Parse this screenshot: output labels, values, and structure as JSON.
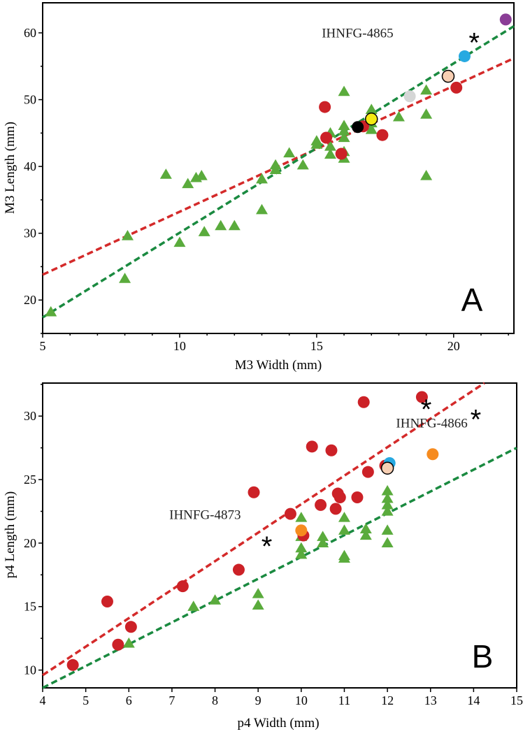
{
  "chart_data": [
    {
      "type": "scatter",
      "panel": "A",
      "title": "",
      "xlabel": "M3 Width (mm)",
      "ylabel": "M3 Length (mm)",
      "xlim": [
        5,
        22.2
      ],
      "ylim": [
        15,
        64.5
      ],
      "xticks": [
        5,
        10,
        15,
        20
      ],
      "yticks": [
        20,
        30,
        40,
        50,
        60
      ],
      "grid": false,
      "series": [
        {
          "name": "green-triangles",
          "marker": "triangle",
          "color": "#5aab3c",
          "points": [
            [
              5.3,
              18.2
            ],
            [
              8.0,
              23.2
            ],
            [
              8.1,
              29.6
            ],
            [
              9.5,
              38.8
            ],
            [
              10.0,
              28.6
            ],
            [
              10.3,
              37.4
            ],
            [
              10.6,
              38.3
            ],
            [
              10.8,
              38.6
            ],
            [
              10.9,
              30.2
            ],
            [
              11.5,
              31.1
            ],
            [
              12.0,
              31.1
            ],
            [
              13.0,
              33.5
            ],
            [
              13.0,
              38.1
            ],
            [
              13.5,
              39.5
            ],
            [
              13.5,
              40.2
            ],
            [
              14.0,
              42.0
            ],
            [
              14.5,
              40.2
            ],
            [
              15.0,
              43.3
            ],
            [
              15.0,
              43.8
            ],
            [
              15.5,
              41.8
            ],
            [
              15.5,
              43.0
            ],
            [
              15.5,
              45.0
            ],
            [
              16.0,
              41.2
            ],
            [
              16.0,
              42.2
            ],
            [
              16.0,
              44.3
            ],
            [
              16.0,
              45.3
            ],
            [
              16.0,
              46.1
            ],
            [
              16.0,
              51.2
            ],
            [
              17.0,
              45.5
            ],
            [
              17.0,
              46.5
            ],
            [
              17.0,
              48.5
            ],
            [
              18.0,
              47.4
            ],
            [
              19.0,
              38.6
            ],
            [
              19.0,
              47.8
            ],
            [
              19.0,
              51.4
            ]
          ]
        },
        {
          "name": "red-circles",
          "marker": "circle",
          "color": "#cc2127",
          "points": [
            [
              15.3,
              48.9
            ],
            [
              15.35,
              44.3
            ],
            [
              15.9,
              41.9
            ],
            [
              16.7,
              46.0
            ],
            [
              17.4,
              44.7
            ],
            [
              20.1,
              51.8
            ]
          ]
        },
        {
          "name": "black-circle",
          "marker": "circle",
          "color": "#000000",
          "points": [
            [
              16.5,
              45.9
            ]
          ]
        },
        {
          "name": "yellow-circle",
          "marker": "circle",
          "color": "#f5ea14",
          "outline": "#000000",
          "points": [
            [
              17.0,
              47.1
            ]
          ]
        },
        {
          "name": "gray-circle",
          "marker": "circle",
          "color": "#d5d6d6",
          "points": [
            [
              18.4,
              50.5
            ]
          ]
        },
        {
          "name": "peach-circle",
          "marker": "circle",
          "color": "#f8cfb3",
          "outline": "#000000",
          "points": [
            [
              19.8,
              53.5
            ]
          ]
        },
        {
          "name": "blue-circle",
          "marker": "circle",
          "color": "#27a9e1",
          "points": [
            [
              20.4,
              56.5
            ]
          ]
        },
        {
          "name": "purple-circle",
          "marker": "circle",
          "color": "#8a3d96",
          "points": [
            [
              21.9,
              62.0
            ]
          ]
        }
      ],
      "trendlines": [
        {
          "name": "red-trend",
          "color": "#d42a2a",
          "from": [
            5,
            23.8
          ],
          "to": [
            22.2,
            56.2
          ]
        },
        {
          "name": "green-trend",
          "color": "#1a8a40",
          "from": [
            5,
            17.4
          ],
          "to": [
            22.2,
            61.0
          ]
        }
      ],
      "annotations": [
        {
          "text": "IHNFG-4865",
          "anchor": [
            17.8,
            59.3
          ],
          "align": "end"
        }
      ],
      "stars": [
        [
          20.75,
          59.2
        ]
      ],
      "panel_letter": "A"
    },
    {
      "type": "scatter",
      "panel": "B",
      "title": "",
      "xlabel": "p4 Width (mm)",
      "ylabel": "p4 Length (mm)",
      "xlim": [
        4,
        15
      ],
      "ylim": [
        8.6,
        32.6
      ],
      "xticks": [
        4,
        5,
        6,
        7,
        8,
        9,
        10,
        11,
        12,
        13,
        14,
        15
      ],
      "yticks": [
        10,
        15,
        20,
        25,
        30
      ],
      "grid": false,
      "series": [
        {
          "name": "green-triangles",
          "marker": "triangle",
          "color": "#5aab3c",
          "points": [
            [
              6.0,
              12.1
            ],
            [
              7.5,
              15.0
            ],
            [
              8.0,
              15.5
            ],
            [
              9.0,
              15.1
            ],
            [
              9.0,
              16.0
            ],
            [
              10.0,
              19.1
            ],
            [
              10.0,
              19.6
            ],
            [
              10.0,
              20.5
            ],
            [
              10.0,
              22.0
            ],
            [
              10.5,
              20.0
            ],
            [
              10.5,
              20.5
            ],
            [
              11.0,
              18.8
            ],
            [
              11.0,
              19.0
            ],
            [
              11.0,
              21.0
            ],
            [
              11.0,
              22.0
            ],
            [
              11.5,
              20.6
            ],
            [
              11.5,
              21.1
            ],
            [
              12.0,
              20.0
            ],
            [
              12.0,
              21.0
            ],
            [
              12.0,
              22.5
            ],
            [
              12.0,
              23.0
            ],
            [
              12.0,
              23.5
            ],
            [
              12.0,
              24.1
            ]
          ]
        },
        {
          "name": "red-circles",
          "marker": "circle",
          "color": "#cc2127",
          "points": [
            [
              4.7,
              10.4
            ],
            [
              5.5,
              15.4
            ],
            [
              5.75,
              12.0
            ],
            [
              6.05,
              13.4
            ],
            [
              7.25,
              16.6
            ],
            [
              8.55,
              17.9
            ],
            [
              8.9,
              24.0
            ],
            [
              9.75,
              22.3
            ],
            [
              10.05,
              20.6
            ],
            [
              10.25,
              27.6
            ],
            [
              10.45,
              23.0
            ],
            [
              10.7,
              27.3
            ],
            [
              10.8,
              22.7
            ],
            [
              10.85,
              23.9
            ],
            [
              10.9,
              23.6
            ],
            [
              11.3,
              23.6
            ],
            [
              11.45,
              31.1
            ],
            [
              11.55,
              25.6
            ],
            [
              11.95,
              26.1
            ],
            [
              12.8,
              31.5
            ]
          ]
        },
        {
          "name": "orange-circles",
          "marker": "circle",
          "color": "#f68b1f",
          "points": [
            [
              10.0,
              21.0
            ],
            [
              13.05,
              27.0
            ]
          ]
        },
        {
          "name": "blue-circle",
          "marker": "circle",
          "color": "#27a9e1",
          "points": [
            [
              12.05,
              26.3
            ]
          ]
        },
        {
          "name": "peach-circle",
          "marker": "circle",
          "color": "#f8cfb3",
          "outline": "#000000",
          "points": [
            [
              12.0,
              25.9
            ]
          ]
        }
      ],
      "trendlines": [
        {
          "name": "red-trend",
          "color": "#d42a2a",
          "from": [
            4,
            9.6
          ],
          "to": [
            14.25,
            32.6
          ]
        },
        {
          "name": "green-trend",
          "color": "#1a8a40",
          "from": [
            4,
            8.6
          ],
          "to": [
            15,
            27.5
          ]
        }
      ],
      "annotations": [
        {
          "text": "IHNFG-4866",
          "anchor": [
            12.2,
            29.1
          ],
          "align": "start"
        },
        {
          "text": "IHNFG-4873",
          "anchor": [
            8.6,
            21.9
          ],
          "align": "end"
        }
      ],
      "stars": [
        [
          12.9,
          30.9
        ],
        [
          14.05,
          30.1
        ],
        [
          9.2,
          20.1
        ]
      ],
      "panel_letter": "B"
    }
  ]
}
